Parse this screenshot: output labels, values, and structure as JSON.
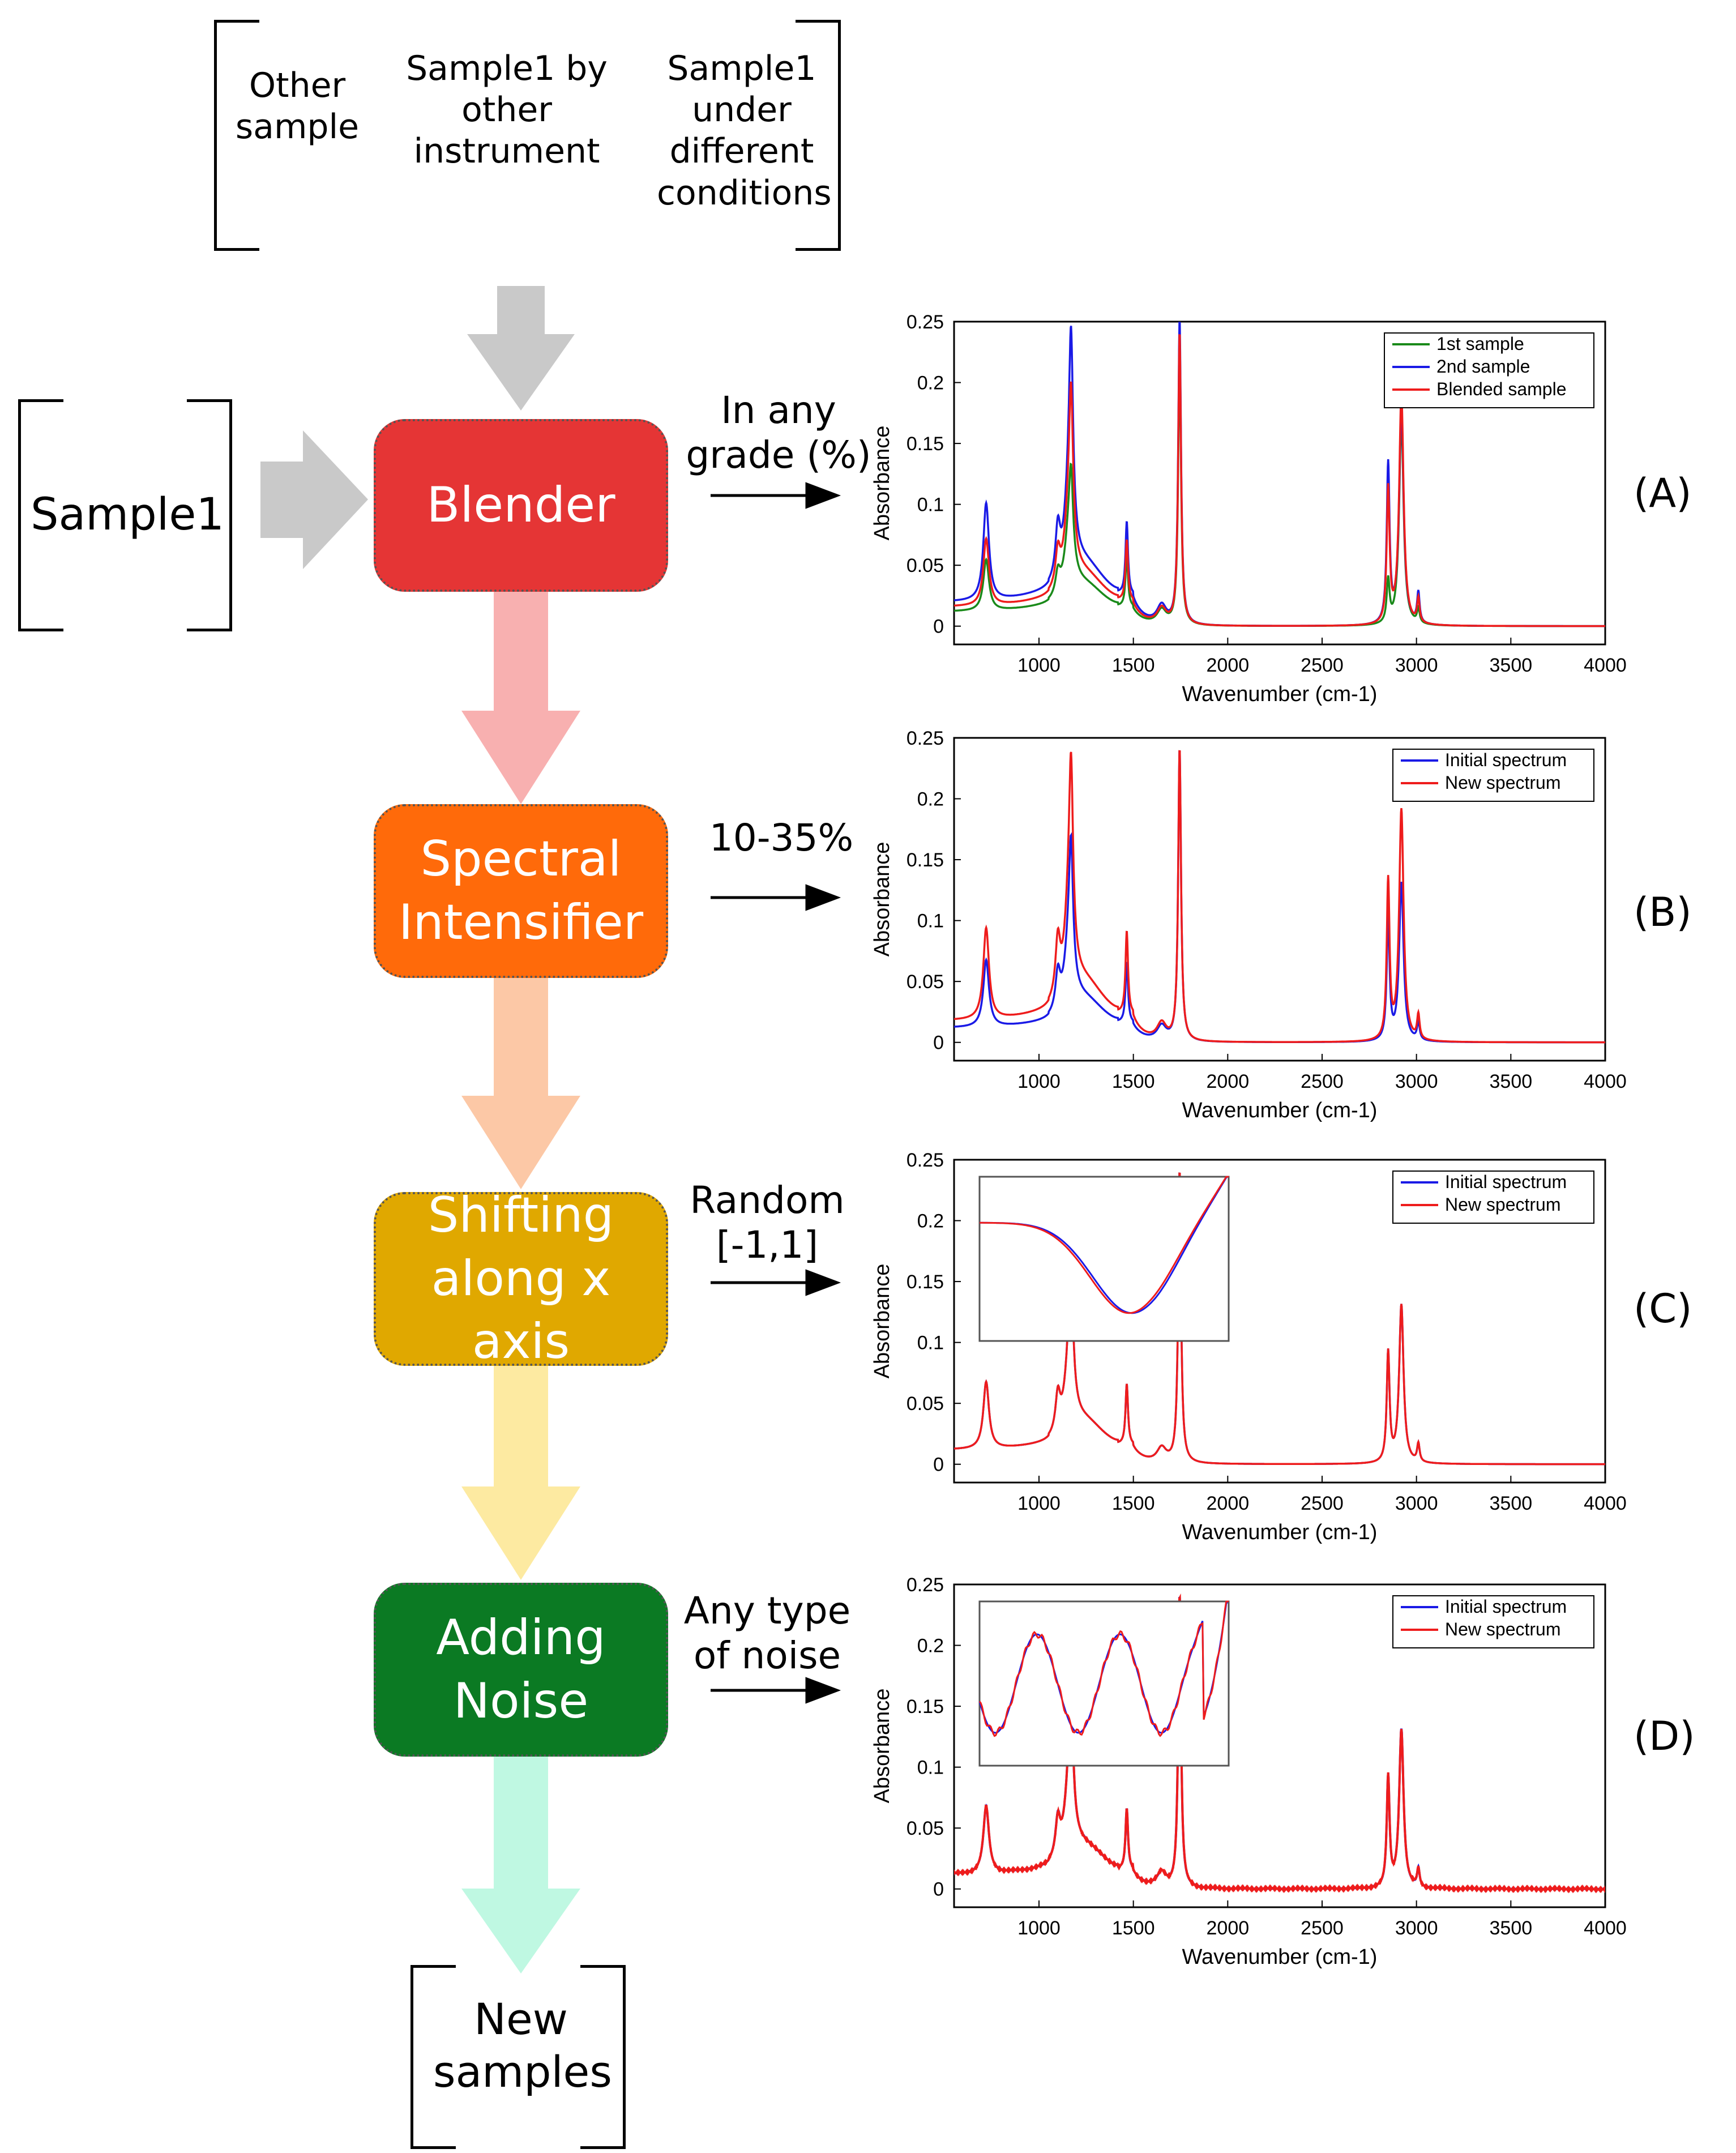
{
  "sources": {
    "top": [
      "Other sample",
      "Sample1 by other instrument",
      "Sample1 under different conditions"
    ],
    "left": "Sample1"
  },
  "steps": [
    {
      "id": "blender",
      "label_lines": [
        "Blender"
      ],
      "color": "#e53535",
      "param": "In any grade (%)",
      "arrow_color": "#f8b0b0"
    },
    {
      "id": "intensifier",
      "label_lines": [
        "Spectral",
        "Intensifier"
      ],
      "color": "#ff6a0a",
      "param": "10-35%",
      "arrow_color": "#fcc8a6"
    },
    {
      "id": "shifting",
      "label_lines": [
        "Shifting",
        "along x axis"
      ],
      "color": "#e0a800",
      "param": "Random [-1,1]",
      "arrow_color": "#fdeaa1"
    },
    {
      "id": "noise",
      "label_lines": [
        "Adding",
        "Noise"
      ],
      "color": "#0b7a23",
      "param": "Any type of noise",
      "arrow_color": "#bff8e2"
    }
  ],
  "output": "New samples",
  "colors": {
    "gray_arrow": "#c9c9c9",
    "series_green": "#1a8a1a",
    "series_blue": "#1a1ae6",
    "series_red": "#ee1c1c"
  },
  "chart_data": [
    {
      "panel": "(A)",
      "type": "line",
      "xlabel": "Wavenumber (cm-1)",
      "ylabel": "Absorbance",
      "xlim": [
        550,
        4000
      ],
      "ylim": [
        -0.015,
        0.25
      ],
      "xticks": [
        1000,
        1500,
        2000,
        2500,
        3000,
        3500,
        4000
      ],
      "yticks": [
        0,
        0.05,
        0.1,
        0.15,
        0.2,
        0.25
      ],
      "legend": [
        "1st sample",
        "2nd sample",
        "Blended sample"
      ],
      "legend_position": "top-right",
      "series": [
        {
          "name": "1st sample",
          "color": "#1a8a1a",
          "offset": 0.012,
          "scale": [
            0.042,
            0.018,
            0.06,
            0.058,
            0.042,
            0.012,
            0.22,
            0.035,
            0.17,
            0.012
          ]
        },
        {
          "name": "2nd sample",
          "color": "#1a1ae6",
          "offset": 0.02,
          "scale": [
            0.08,
            0.04,
            0.08,
            0.14,
            0.06,
            0.015,
            0.25,
            0.13,
            0.18,
            0.025
          ]
        },
        {
          "name": "Blended sample",
          "color": "#ee1c1c",
          "offset": 0.016,
          "scale": [
            0.055,
            0.028,
            0.07,
            0.11,
            0.05,
            0.013,
            0.24,
            0.11,
            0.19,
            0.02
          ]
        }
      ]
    },
    {
      "panel": "(B)",
      "type": "line",
      "xlabel": "Wavenumber (cm-1)",
      "ylabel": "Absorbance",
      "xlim": [
        550,
        4000
      ],
      "ylim": [
        -0.015,
        0.25
      ],
      "xticks": [
        1000,
        1500,
        2000,
        2500,
        3000,
        3500,
        4000
      ],
      "yticks": [
        0,
        0.05,
        0.1,
        0.15,
        0.2,
        0.25
      ],
      "legend": [
        "Initial spectrum",
        "New spectrum"
      ],
      "legend_position": "top-right",
      "series": [
        {
          "name": "Initial spectrum",
          "color": "#1a1ae6",
          "offset": 0.012,
          "scale": [
            0.055,
            0.03,
            0.065,
            0.09,
            0.05,
            0.012,
            0.24,
            0.1,
            0.13,
            0.015
          ]
        },
        {
          "name": "New spectrum",
          "color": "#ee1c1c",
          "offset": 0.018,
          "scale": [
            0.075,
            0.045,
            0.085,
            0.13,
            0.068,
            0.014,
            0.24,
            0.13,
            0.19,
            0.02
          ]
        }
      ]
    },
    {
      "panel": "(C)",
      "type": "line",
      "xlabel": "Wavenumber (cm-1)",
      "ylabel": "Absorbance",
      "xlim": [
        550,
        4000
      ],
      "ylim": [
        -0.015,
        0.25
      ],
      "xticks": [
        1000,
        1500,
        2000,
        2500,
        3000,
        3500,
        4000
      ],
      "yticks": [
        0,
        0.05,
        0.1,
        0.15,
        0.2,
        0.25
      ],
      "legend": [
        "Initial spectrum",
        "New spectrum"
      ],
      "legend_position": "top-right",
      "inset": "zoomed view of local minimum",
      "series": [
        {
          "name": "Initial spectrum",
          "color": "#1a1ae6",
          "offset": 0.012,
          "scale": [
            0.055,
            0.03,
            0.065,
            0.09,
            0.05,
            0.012,
            0.24,
            0.09,
            0.13,
            0.015
          ]
        },
        {
          "name": "New spectrum",
          "color": "#ee1c1c",
          "offset": 0.012,
          "scale": [
            0.055,
            0.03,
            0.065,
            0.09,
            0.05,
            0.012,
            0.24,
            0.09,
            0.13,
            0.015
          ]
        }
      ]
    },
    {
      "panel": "(D)",
      "type": "line",
      "xlabel": "Wavenumber (cm-1)",
      "ylabel": "Absorbance",
      "xlim": [
        550,
        4000
      ],
      "ylim": [
        -0.015,
        0.25
      ],
      "xticks": [
        1000,
        1500,
        2000,
        2500,
        3000,
        3500,
        4000
      ],
      "yticks": [
        0,
        0.05,
        0.1,
        0.15,
        0.2,
        0.25
      ],
      "legend": [
        "Initial spectrum",
        "New spectrum"
      ],
      "legend_position": "top-right",
      "inset": "zoomed view of noisy region",
      "series": [
        {
          "name": "Initial spectrum",
          "color": "#1a1ae6",
          "offset": 0.012,
          "scale": [
            0.055,
            0.03,
            0.065,
            0.09,
            0.05,
            0.012,
            0.24,
            0.09,
            0.13,
            0.015
          ]
        },
        {
          "name": "New spectrum",
          "color": "#ee1c1c",
          "offset": 0.012,
          "scale": [
            0.055,
            0.03,
            0.065,
            0.09,
            0.05,
            0.012,
            0.24,
            0.09,
            0.13,
            0.015
          ]
        }
      ]
    }
  ]
}
